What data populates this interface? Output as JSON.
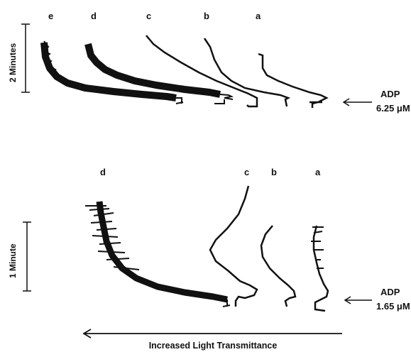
{
  "top_panel": {
    "trace_labels": [
      "e",
      "d",
      "c",
      "b",
      "a"
    ],
    "time_scale_label": "2 Minutes",
    "stimulus_name": "ADP",
    "stimulus_conc": "6.25 μM"
  },
  "bottom_panel": {
    "trace_labels": [
      "d",
      "c",
      "b",
      "a"
    ],
    "time_scale_label": "1 Minute",
    "stimulus_name": "ADP",
    "stimulus_conc": "1.65 μM"
  },
  "axis_label": "Increased Light Transmittance"
}
